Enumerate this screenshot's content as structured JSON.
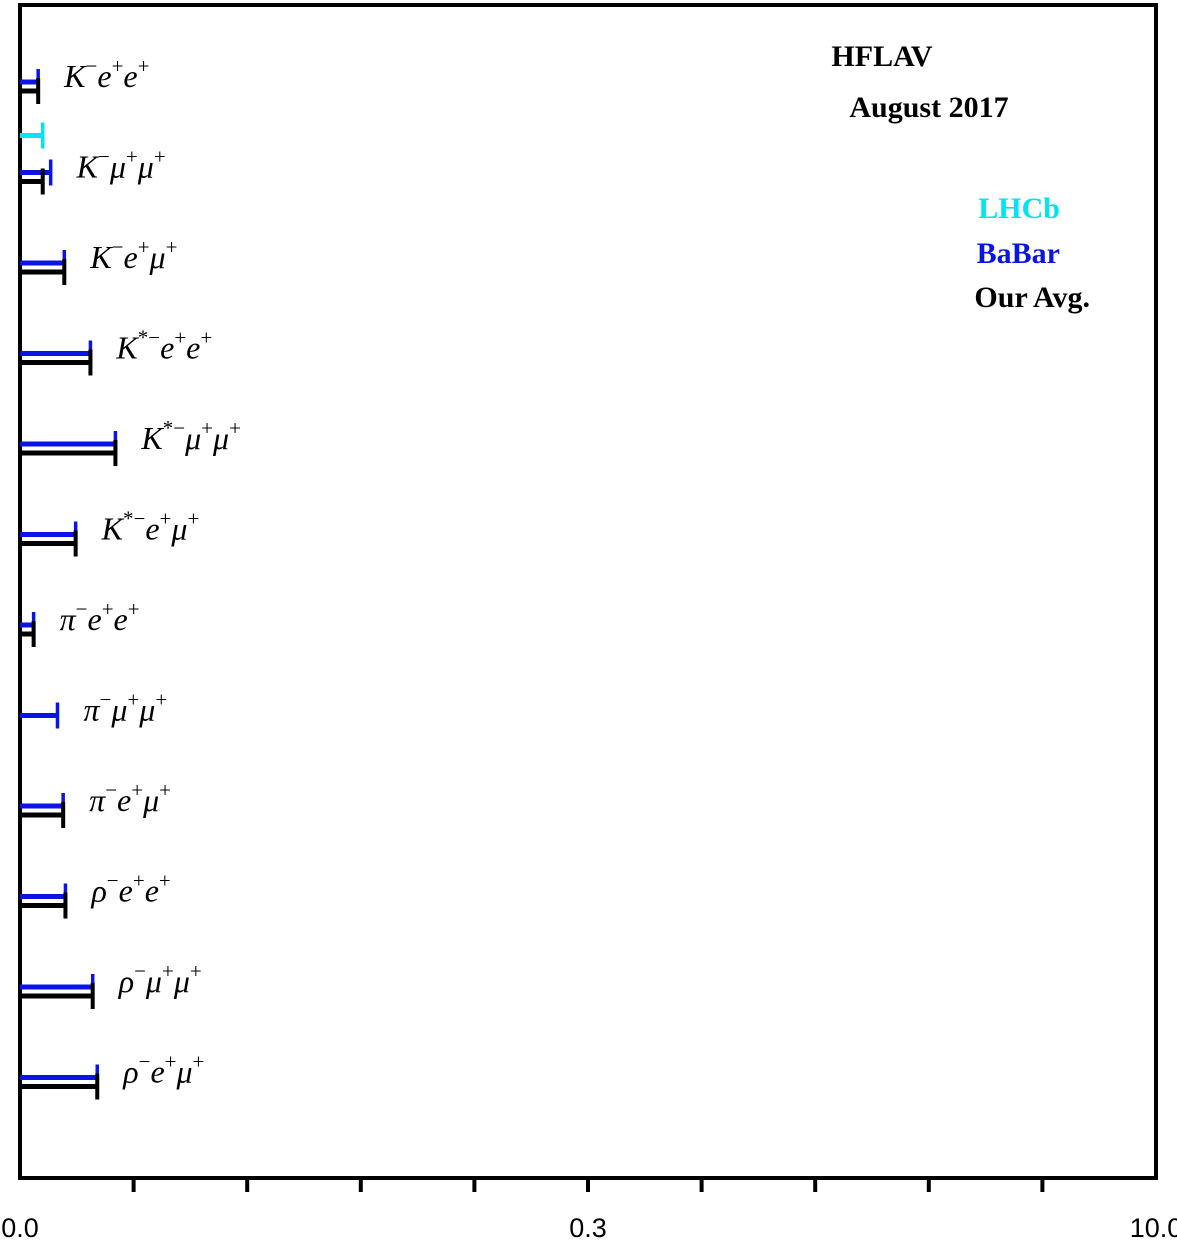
{
  "chart_data": {
    "type": "bar",
    "orientation": "horizontal",
    "annotation_lines": [
      "HFLAV",
      "August 2017"
    ],
    "legend": [
      {
        "name": "LHCb",
        "color": "#00e5ee"
      },
      {
        "name": "BaBar",
        "color": "#0a14e6"
      },
      {
        "name": "Our Avg.",
        "color": "#000000"
      }
    ],
    "legend_position": "top-right",
    "x_ticks": [
      {
        "value": 0.0,
        "label": "0.0"
      },
      {
        "value": 0.3,
        "label": "0.3"
      },
      {
        "value": 10.0,
        "label": "10.0"
      }
    ],
    "xlim": [
      0,
      10
    ],
    "grid": false,
    "decays": [
      {
        "base": "K",
        "sups": [
          "−",
          "+",
          "+"
        ],
        "leptons": [
          "e",
          "e"
        ],
        "babar": 0.16,
        "avg": 0.16
      },
      {
        "base": "K",
        "sups": [
          "−",
          "+",
          "+"
        ],
        "leptons": [
          "μ",
          "μ"
        ],
        "lhcb": 0.2,
        "babar": 0.27,
        "avg": 0.2
      },
      {
        "base": "K",
        "sups": [
          "−",
          "+",
          "+"
        ],
        "leptons": [
          "e",
          "μ"
        ],
        "babar": 0.39,
        "avg": 0.39
      },
      {
        "base": "K",
        "sups": [
          "*−",
          "+",
          "+"
        ],
        "leptons": [
          "e",
          "e"
        ],
        "babar": 0.62,
        "avg": 0.62
      },
      {
        "base": "K",
        "sups": [
          "*−",
          "+",
          "+"
        ],
        "leptons": [
          "μ",
          "μ"
        ],
        "babar": 0.84,
        "avg": 0.84
      },
      {
        "base": "K",
        "sups": [
          "*−",
          "+",
          "+"
        ],
        "leptons": [
          "e",
          "μ"
        ],
        "babar": 0.49,
        "avg": 0.49
      },
      {
        "base": "π",
        "sups": [
          "−",
          "+",
          "+"
        ],
        "leptons": [
          "e",
          "e"
        ],
        "babar": 0.12,
        "avg": 0.12
      },
      {
        "base": "π",
        "sups": [
          "−",
          "+",
          "+"
        ],
        "leptons": [
          "μ",
          "μ"
        ],
        "babar": 0.33
      },
      {
        "base": "π",
        "sups": [
          "−",
          "+",
          "+"
        ],
        "leptons": [
          "e",
          "μ"
        ],
        "babar": 0.38,
        "avg": 0.38
      },
      {
        "base": "ρ",
        "sups": [
          "−",
          "+",
          "+"
        ],
        "leptons": [
          "e",
          "e"
        ],
        "babar": 0.4,
        "avg": 0.4
      },
      {
        "base": "ρ",
        "sups": [
          "−",
          "+",
          "+"
        ],
        "leptons": [
          "μ",
          "μ"
        ],
        "babar": 0.64,
        "avg": 0.64
      },
      {
        "base": "ρ",
        "sups": [
          "−",
          "+",
          "+"
        ],
        "leptons": [
          "e",
          "μ"
        ],
        "babar": 0.68,
        "avg": 0.68
      }
    ]
  }
}
